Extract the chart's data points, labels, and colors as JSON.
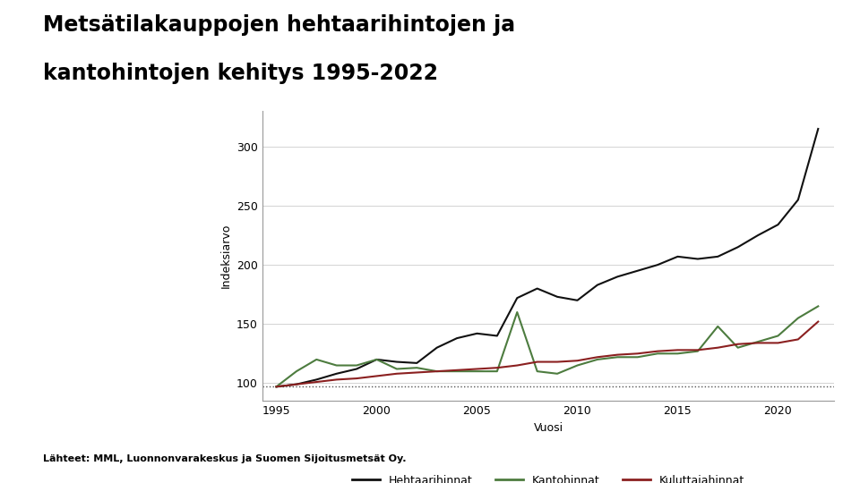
{
  "title_line1": "Metsätilakauppojen hehtaarihintojen ja",
  "title_line2": "kantohintojen kehitys 1995-2022",
  "xlabel": "Vuosi",
  "ylabel": "Indeksiarvo",
  "source_text": "Lähteet: MML, Luonnonvarakeskus ja Suomen Sijoitusmetsät Oy.",
  "years": [
    1995,
    1996,
    1997,
    1998,
    1999,
    2000,
    2001,
    2002,
    2003,
    2004,
    2005,
    2006,
    2007,
    2008,
    2009,
    2010,
    2011,
    2012,
    2013,
    2014,
    2015,
    2016,
    2017,
    2018,
    2019,
    2020,
    2021,
    2022
  ],
  "hehtaarihinnat": [
    97,
    99,
    103,
    108,
    112,
    120,
    118,
    117,
    130,
    138,
    142,
    140,
    172,
    180,
    173,
    170,
    183,
    190,
    195,
    200,
    207,
    205,
    207,
    215,
    225,
    234,
    255,
    315
  ],
  "kantohinnat": [
    97,
    110,
    120,
    115,
    115,
    120,
    112,
    113,
    110,
    110,
    110,
    110,
    160,
    110,
    108,
    115,
    120,
    122,
    122,
    125,
    125,
    127,
    148,
    130,
    135,
    140,
    155,
    165
  ],
  "kuluttajahinnat": [
    97,
    99,
    101,
    103,
    104,
    106,
    108,
    109,
    110,
    111,
    112,
    113,
    115,
    118,
    118,
    119,
    122,
    124,
    125,
    127,
    128,
    128,
    130,
    133,
    134,
    134,
    137,
    152
  ],
  "hehtaari_color": "#111111",
  "kanto_color": "#4d7c3f",
  "kuluttaja_color": "#8b2020",
  "reference_value": 97,
  "ylim": [
    85,
    330
  ],
  "yticks": [
    100,
    150,
    200,
    250,
    300
  ],
  "xticks": [
    1995,
    2000,
    2005,
    2010,
    2015,
    2020
  ],
  "legend_labels": [
    "Hehtaarihinnat",
    "Kantohinnat",
    "Kuluttajahinnat"
  ],
  "background_color": "#ffffff",
  "title_fontsize": 17,
  "axis_label_fontsize": 9,
  "tick_fontsize": 9,
  "legend_fontsize": 9,
  "source_fontsize": 8
}
